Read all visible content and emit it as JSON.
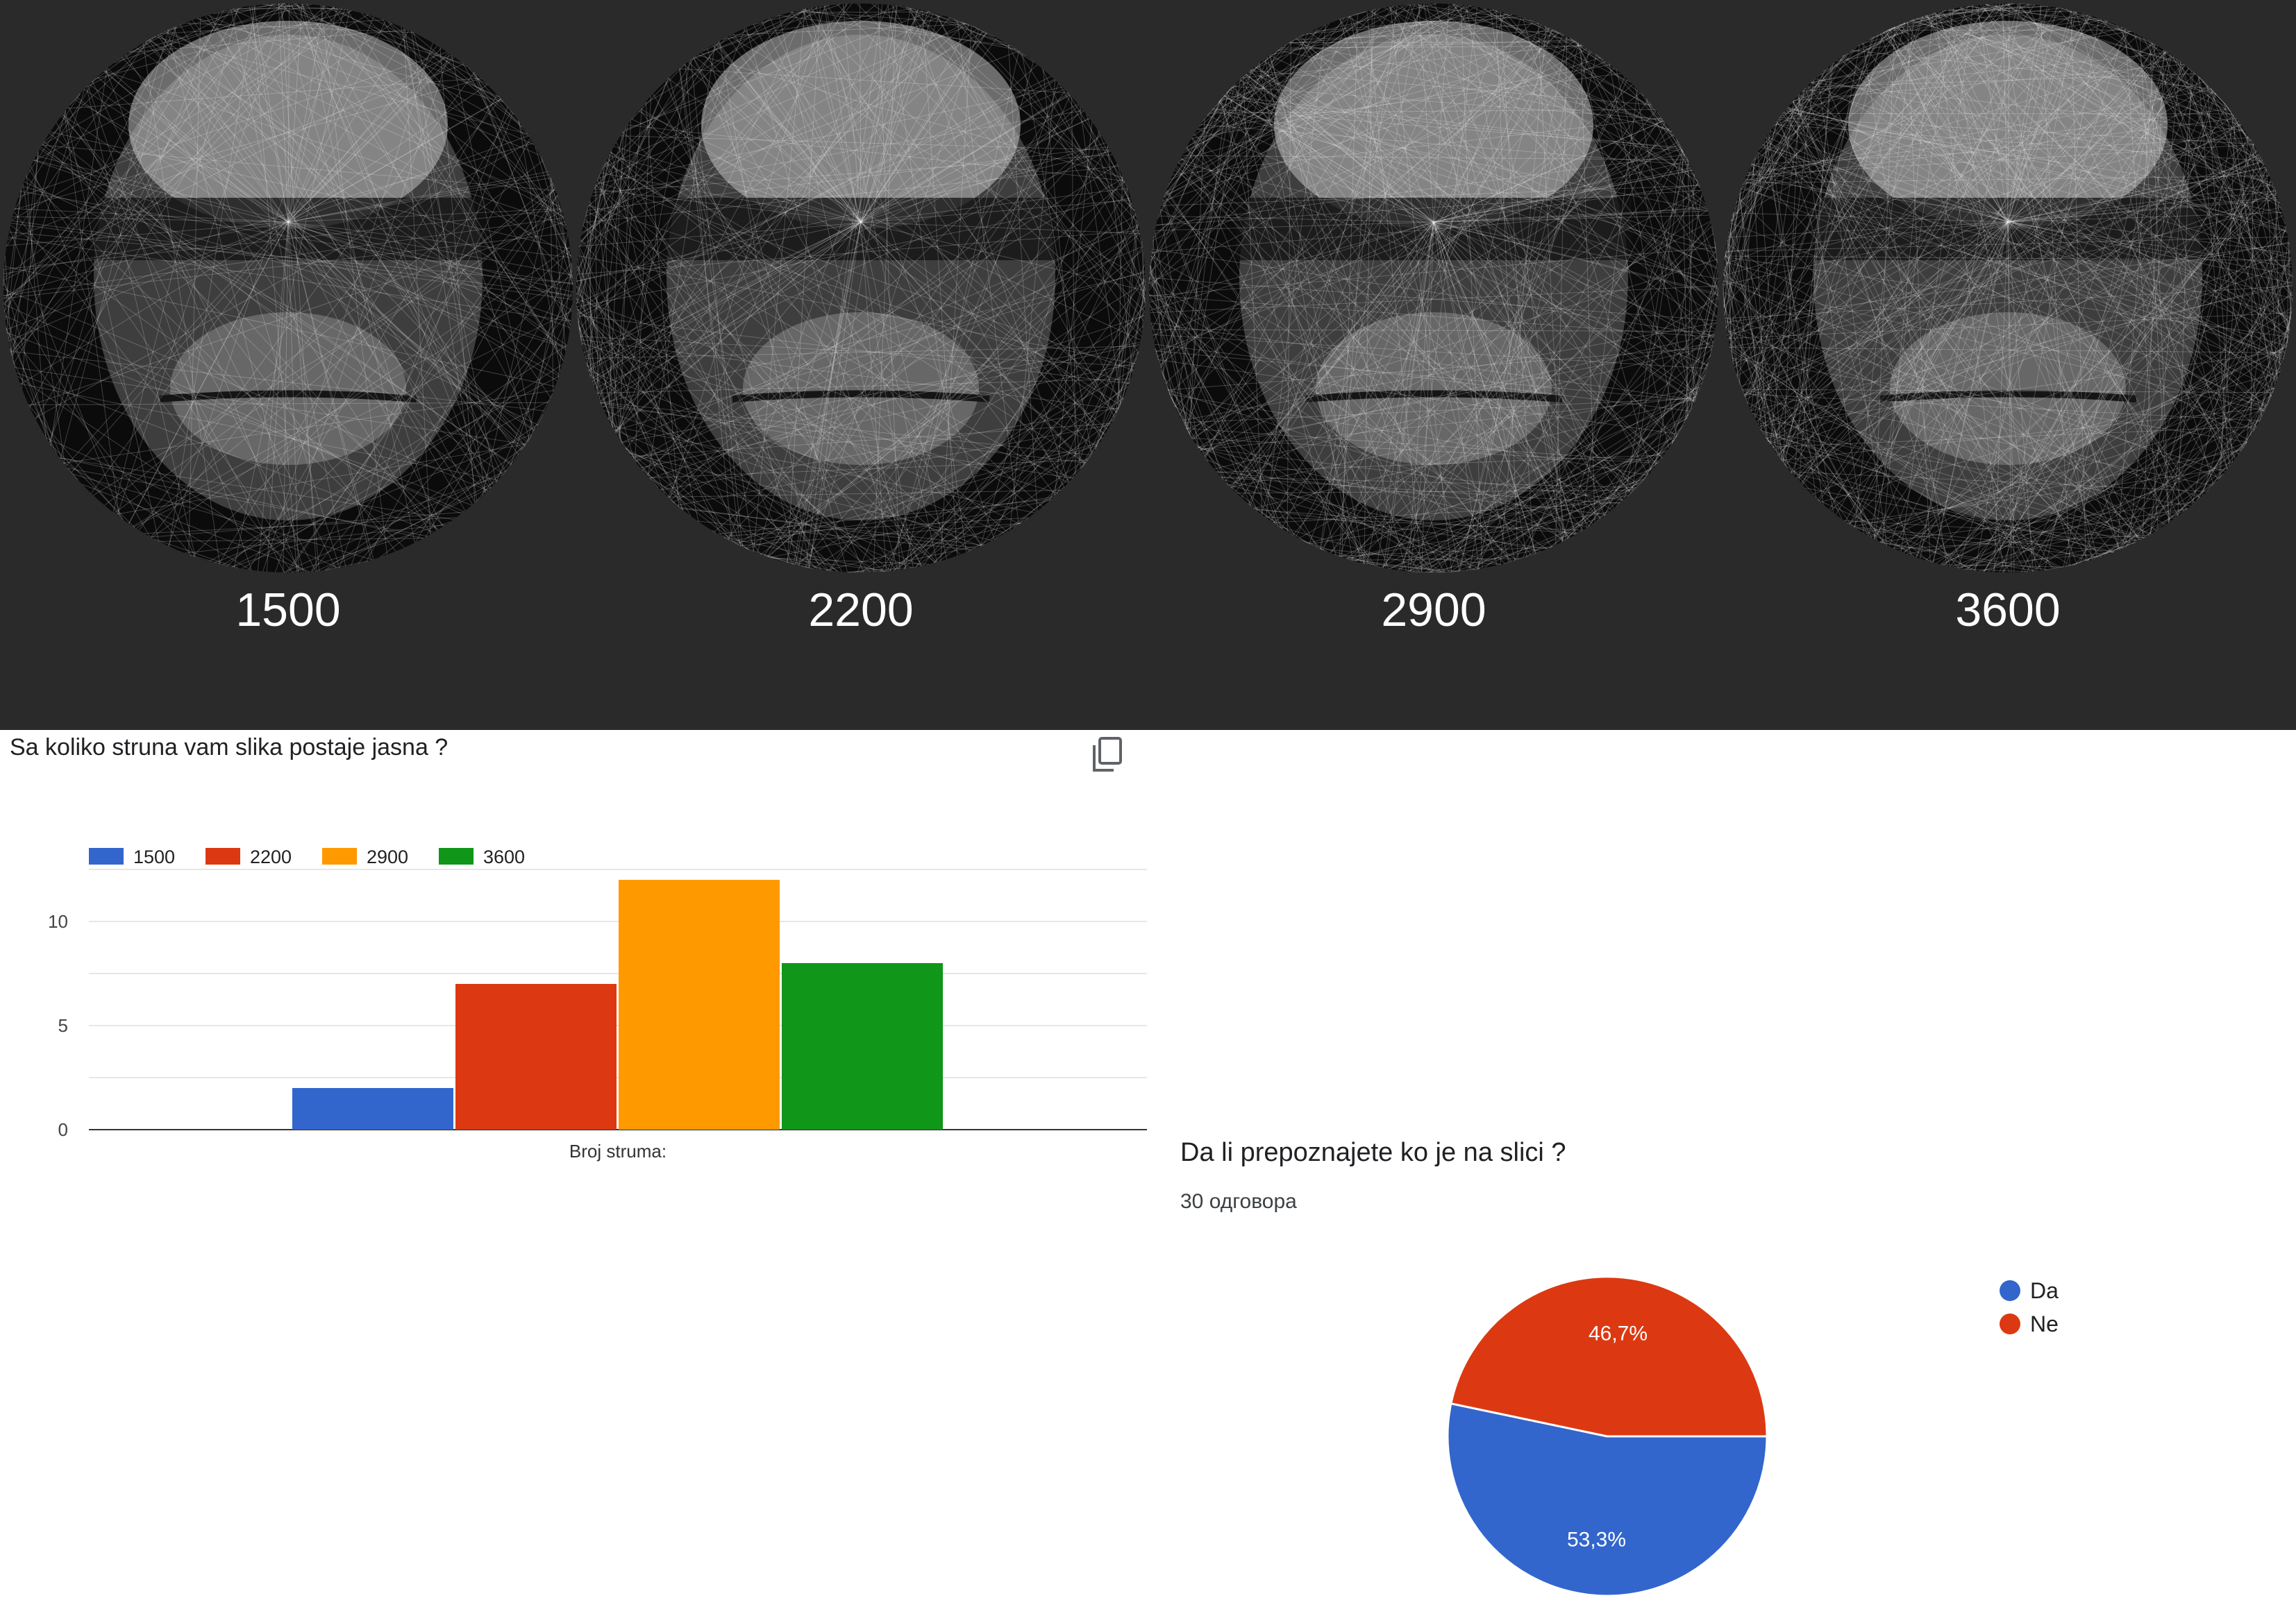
{
  "portraits": [
    {
      "label": "1500"
    },
    {
      "label": "2200"
    },
    {
      "label": "2900"
    },
    {
      "label": "3600"
    }
  ],
  "bar_section": {
    "title": "Sa koliko struna vam slika postaje jasna ?",
    "copy_icon": "copy-icon"
  },
  "pie_section": {
    "title": "Da li prepoznajete ko je na slici ?",
    "responses": "30 одговора"
  },
  "chart_data": [
    {
      "type": "bar",
      "categories": [
        "Broj struma:"
      ],
      "series": [
        {
          "name": "1500",
          "values": [
            2
          ],
          "color": "#3366cc"
        },
        {
          "name": "2200",
          "values": [
            7
          ],
          "color": "#dc3912"
        },
        {
          "name": "2900",
          "values": [
            12
          ],
          "color": "#ff9900"
        },
        {
          "name": "3600",
          "values": [
            8
          ],
          "color": "#109618"
        }
      ],
      "ylim": [
        0,
        12.5
      ],
      "yticks": [
        0,
        5,
        10
      ],
      "xlabel": "Broj struma:",
      "grid": true,
      "legend": "top-left"
    },
    {
      "type": "pie",
      "slices": [
        {
          "name": "Da",
          "value": 53.3,
          "label": "53,3%",
          "color": "#3366cc"
        },
        {
          "name": "Ne",
          "value": 46.7,
          "label": "46,7%",
          "color": "#dc3912"
        }
      ],
      "legend": "right"
    }
  ]
}
